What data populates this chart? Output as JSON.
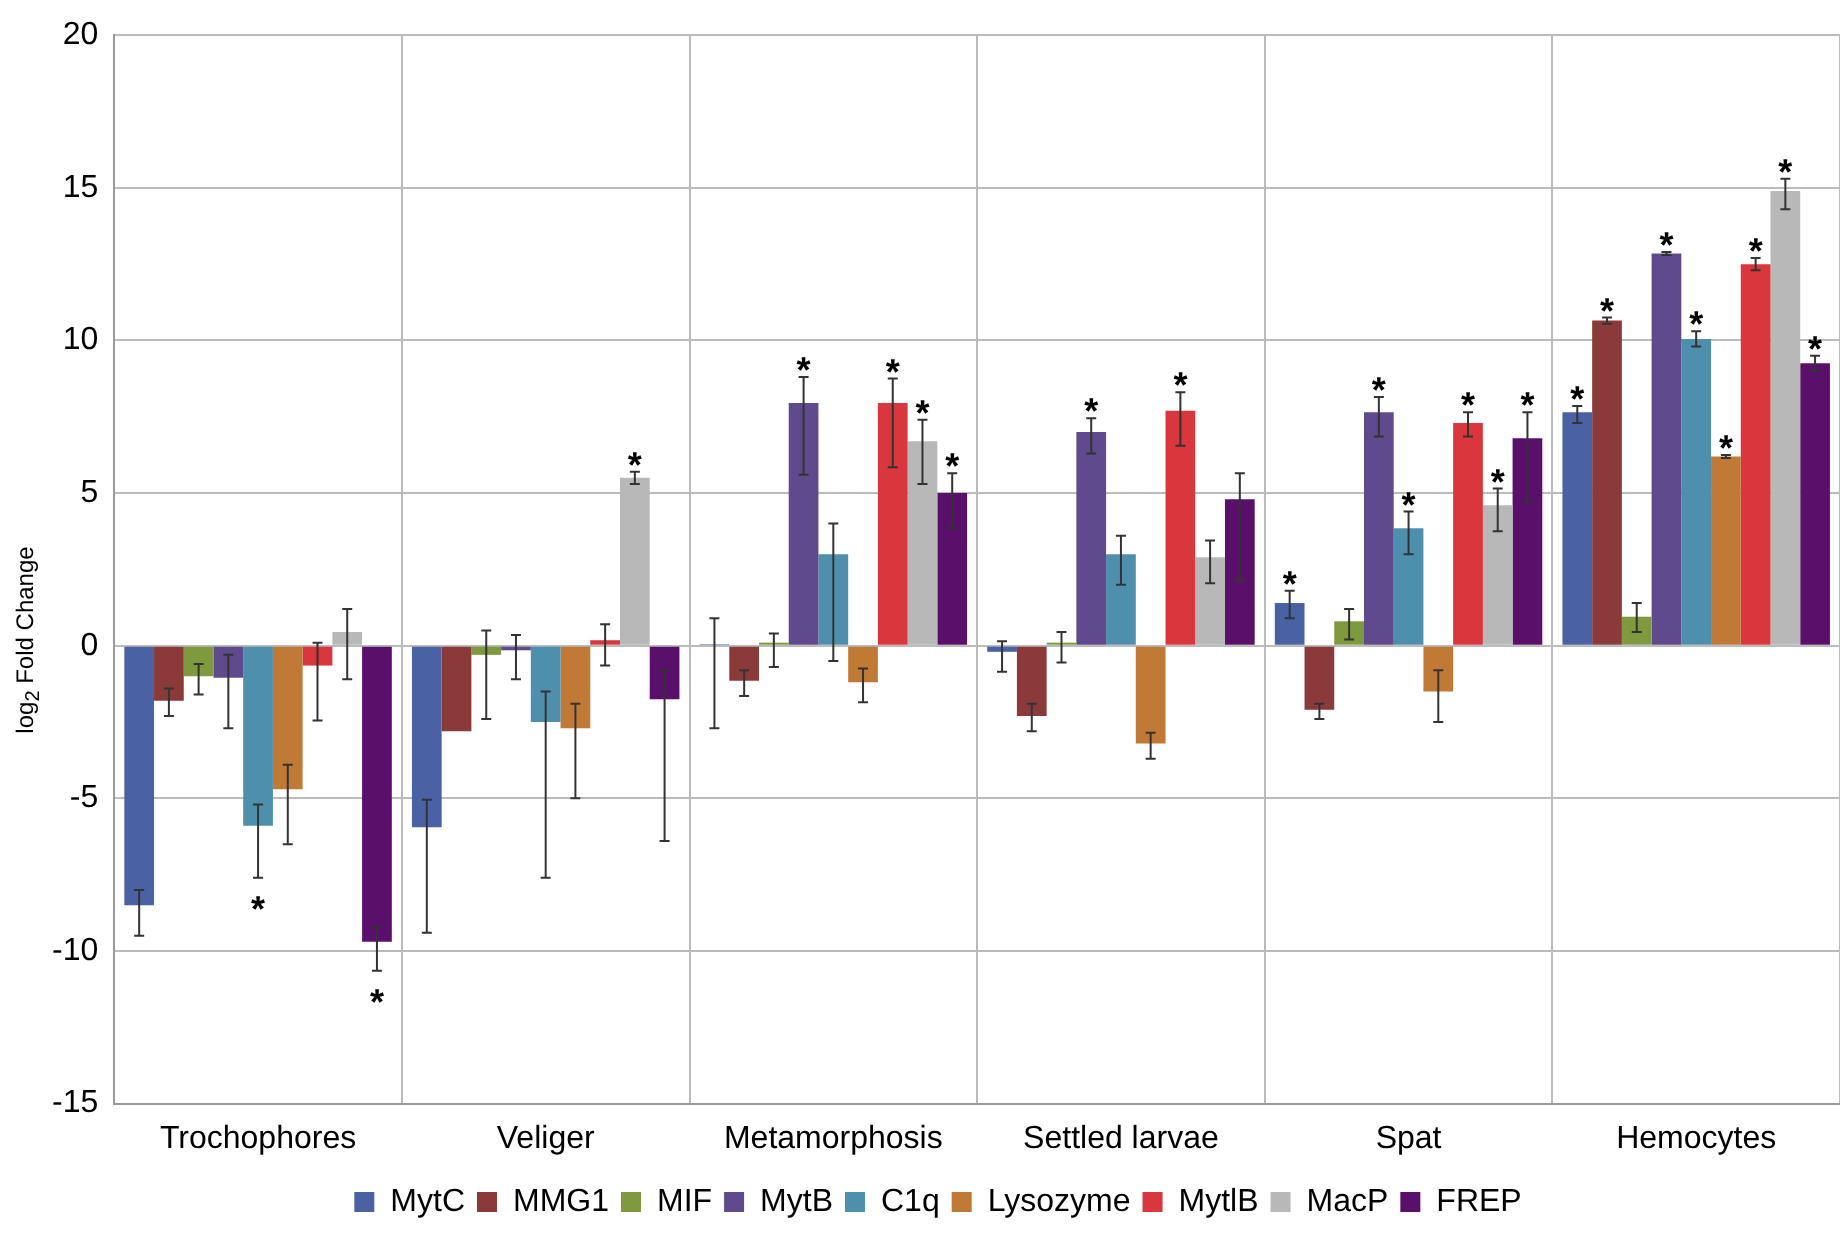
{
  "chart_data": {
    "type": "bar",
    "ylabel": "log$_{2}$ Fold Change",
    "categories": [
      "Trochophores",
      "Veliger",
      "Metamorphosis",
      "Settled larvae",
      "Spat",
      "Hemocytes"
    ],
    "ylim": [
      -15,
      20
    ],
    "yticks": [
      -15,
      -10,
      -5,
      0,
      5,
      10,
      15,
      20
    ],
    "grid": true,
    "legend": "bottom",
    "series": [
      {
        "name": "MytC",
        "color": "#4a62a4",
        "values": [
          -8.5,
          -5.95,
          0.05,
          -0.2,
          1.4,
          7.65
        ],
        "errors": [
          [
            -9.5,
            -8.0
          ],
          [
            -9.4,
            -5.05
          ],
          [
            -2.7,
            0.9
          ],
          [
            -0.85,
            0.15
          ],
          [
            0.9,
            1.8
          ],
          [
            7.3,
            7.85
          ]
        ],
        "value_labels": [
          null,
          null,
          null,
          null,
          "*",
          "*"
        ]
      },
      {
        "name": "MMG1",
        "color": "#8b3a3a",
        "values": [
          -1.8,
          -2.8,
          -1.15,
          -2.3,
          -2.1,
          10.65
        ],
        "errors": [
          [
            -2.3,
            -1.4
          ],
          null,
          [
            -1.65,
            -0.8
          ],
          [
            -2.8,
            -1.9
          ],
          [
            -2.4,
            -1.9
          ],
          [
            10.55,
            10.75
          ]
        ],
        "value_labels": [
          null,
          null,
          null,
          null,
          null,
          "*"
        ]
      },
      {
        "name": "MIF",
        "color": "#7f9a3e",
        "values": [
          -1.0,
          -0.3,
          0.1,
          0.1,
          0.8,
          0.95
        ],
        "errors": [
          [
            -1.6,
            -0.6
          ],
          [
            -2.4,
            0.5
          ],
          [
            -0.7,
            0.4
          ],
          [
            -0.55,
            0.45
          ],
          [
            0.2,
            1.2
          ],
          [
            0.45,
            1.4
          ]
        ],
        "value_labels": [
          null,
          null,
          null,
          null,
          null,
          null
        ]
      },
      {
        "name": "MytB",
        "color": "#5e4a8c",
        "values": [
          -1.05,
          -0.15,
          7.95,
          7.0,
          7.65,
          12.85
        ],
        "errors": [
          [
            -2.7,
            -0.3
          ],
          [
            -1.1,
            0.35
          ],
          [
            5.6,
            8.8
          ],
          [
            6.3,
            7.45
          ],
          [
            6.85,
            8.15
          ],
          [
            12.8,
            12.9
          ]
        ],
        "value_labels": [
          null,
          null,
          "*",
          "*",
          "*",
          "*"
        ]
      },
      {
        "name": "C1q",
        "color": "#4f8fae",
        "values": [
          -5.9,
          -2.5,
          3.0,
          3.0,
          3.85,
          10.05
        ],
        "errors": [
          [
            -7.6,
            -5.2
          ],
          [
            -7.6,
            -1.5
          ],
          [
            -0.5,
            4.0
          ],
          [
            2.0,
            3.6
          ],
          [
            3.0,
            4.4
          ],
          [
            9.8,
            10.3
          ]
        ],
        "value_labels": [
          "*",
          null,
          null,
          null,
          "*",
          "*"
        ]
      },
      {
        "name": "Lysozyme",
        "color": "#c07a35",
        "values": [
          -4.7,
          -2.7,
          -1.2,
          -3.2,
          -1.5,
          6.2
        ],
        "errors": [
          [
            -6.5,
            -3.9
          ],
          [
            -5.0,
            -1.9
          ],
          [
            -1.85,
            -0.75
          ],
          [
            -3.7,
            -2.85
          ],
          [
            -2.5,
            -0.8
          ],
          [
            6.15,
            6.25
          ]
        ],
        "value_labels": [
          null,
          null,
          null,
          null,
          null,
          "*"
        ]
      },
      {
        "name": "MytlB",
        "color": "#d9363e",
        "values": [
          -0.65,
          0.18,
          7.95,
          7.7,
          7.3,
          12.5
        ],
        "errors": [
          [
            -2.45,
            0.1
          ],
          [
            -0.65,
            0.7
          ],
          [
            5.85,
            8.75
          ],
          [
            6.55,
            8.3
          ],
          [
            6.85,
            7.65
          ],
          [
            12.3,
            12.7
          ]
        ],
        "value_labels": [
          null,
          null,
          "*",
          "*",
          "*",
          "*"
        ]
      },
      {
        "name": "MacP",
        "color": "#b8b8b8",
        "values": [
          0.45,
          5.5,
          6.7,
          2.9,
          4.6,
          14.9
        ],
        "errors": [
          [
            -1.1,
            1.2
          ],
          [
            5.3,
            5.7
          ],
          [
            5.3,
            7.4
          ],
          [
            2.05,
            3.45
          ],
          [
            3.75,
            5.15
          ],
          [
            14.3,
            15.3
          ]
        ],
        "value_labels": [
          null,
          "*",
          "*",
          null,
          "*",
          "*"
        ]
      },
      {
        "name": "FREP",
        "color": "#5a0f6b",
        "values": [
          -9.7,
          -1.75,
          5.0,
          4.8,
          6.8,
          9.25
        ],
        "errors": [
          [
            -10.65,
            -9.2
          ],
          [
            -6.4,
            -0.8
          ],
          [
            3.85,
            5.65
          ],
          [
            2.15,
            5.65
          ],
          [
            4.7,
            7.65
          ],
          [
            9.0,
            9.5
          ]
        ],
        "value_labels": [
          "*",
          null,
          "*",
          null,
          "*",
          "*"
        ]
      }
    ]
  }
}
